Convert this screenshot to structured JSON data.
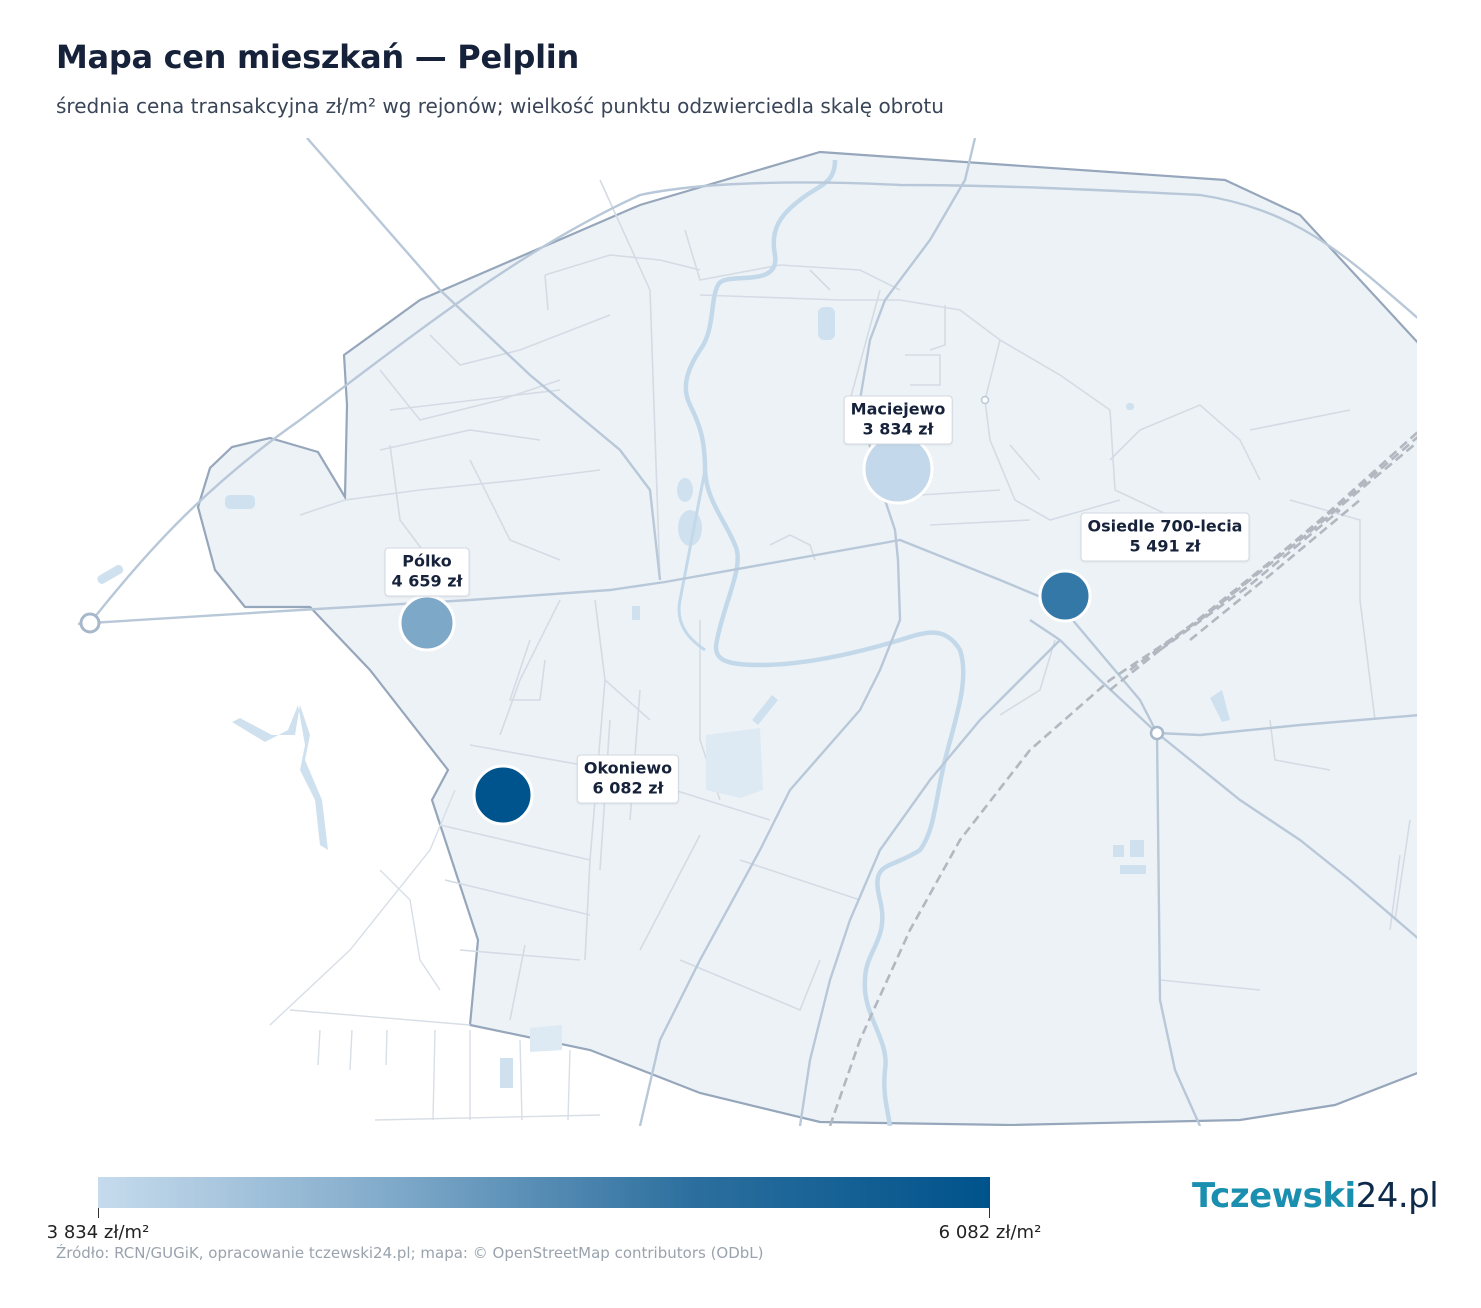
{
  "title": "Mapa cen mieszkań — Pelplin",
  "subtitle": "średnia cena transakcyjna zł/m² wg rejonów; wielkość punktu odzwierciedla skalę obrotu",
  "districts": [
    {
      "name": "Maciejewo",
      "price": "3 834 zł",
      "value": 3834,
      "color": "#c3d8ea"
    },
    {
      "name": "Pólko",
      "price": "4 659 zł",
      "value": 4659,
      "color": "#7ea8c8"
    },
    {
      "name": "Osiedle 700-lecia",
      "price": "5 491 zł",
      "value": 5491,
      "color": "#3478a8"
    },
    {
      "name": "Okoniewo",
      "price": "6 082 zł",
      "value": 6082,
      "color": "#00548d"
    }
  ],
  "colorbar": {
    "min_label": "3 834 zł/m²",
    "max_label": "6 082 zł/m²",
    "min": 3834,
    "max": 6082,
    "colors": [
      "#c6dbed",
      "#00538c"
    ]
  },
  "source": "Źródło: RCN/GUGiK, opracowanie tczewski24.pl; mapa: © OpenStreetMap contributors (ODbL)",
  "logo": {
    "part1": "Tczewski",
    "part2": "24.pl"
  }
}
